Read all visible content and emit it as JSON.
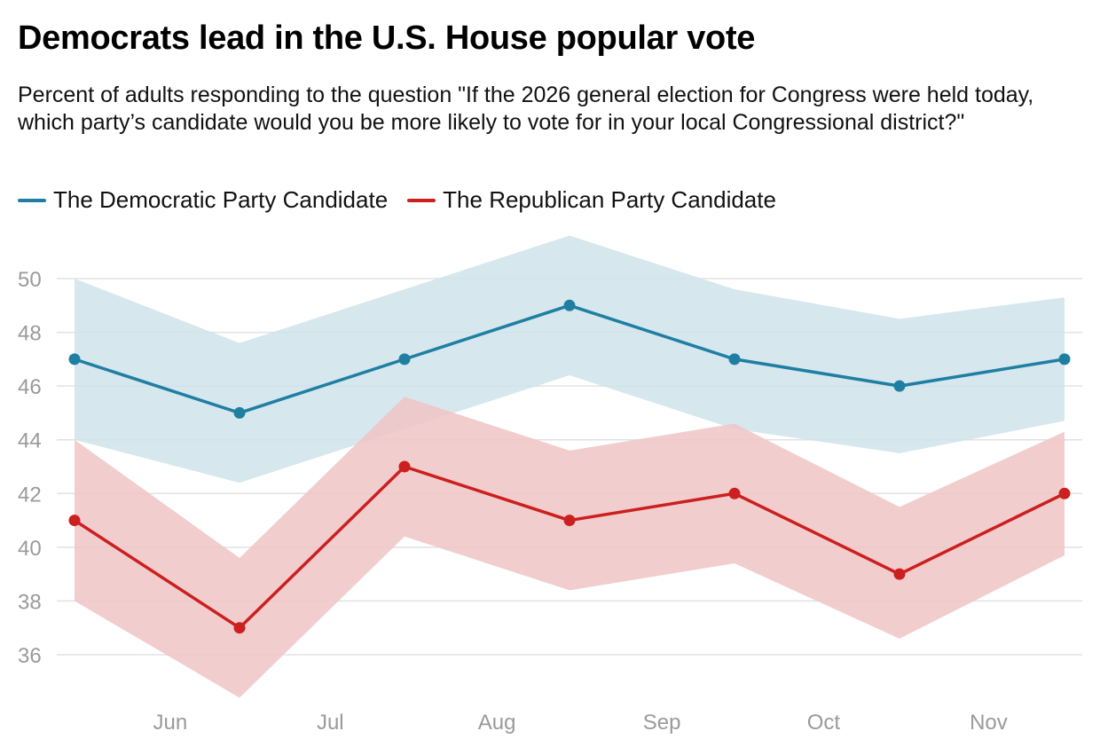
{
  "title": "Democrats lead in the U.S. House popular vote",
  "subtitle": "Percent of adults responding to the question \"If the 2026 general election for Congress were held today, which party’s candidate would you be more likely to vote for in your local Congressional district?\"",
  "chart_data": {
    "type": "line",
    "title": "Democrats lead in the U.S. House popular vote",
    "xlabel": "",
    "ylabel": "",
    "ylim": [
      34,
      52
    ],
    "yticks": [
      36,
      38,
      40,
      42,
      44,
      46,
      48,
      50
    ],
    "x": [
      0,
      1,
      2,
      3,
      4,
      5,
      6
    ],
    "xticks": [
      {
        "label": "Jun",
        "at": 0.58
      },
      {
        "label": "Jul",
        "at": 1.55
      },
      {
        "label": "Aug",
        "at": 2.56
      },
      {
        "label": "Sep",
        "at": 3.56
      },
      {
        "label": "Oct",
        "at": 4.54
      },
      {
        "label": "Nov",
        "at": 5.54
      }
    ],
    "grid": true,
    "legend_position": "top-left",
    "series": [
      {
        "name": "The Democratic Party Candidate",
        "color": "#1f7fa3",
        "band_color": "#cfe3ea",
        "values": [
          47,
          45,
          47,
          49,
          47,
          46,
          47
        ],
        "upper": [
          50,
          47.6,
          49.6,
          51.6,
          49.6,
          48.5,
          49.3
        ],
        "lower": [
          44,
          42.4,
          44.4,
          46.4,
          44.4,
          43.5,
          44.7
        ]
      },
      {
        "name": "The Republican Party Candidate",
        "color": "#cc1f1f",
        "band_color": "#f0c4c4",
        "values": [
          41,
          37,
          43,
          41,
          42,
          39,
          42
        ],
        "upper": [
          44,
          39.6,
          45.6,
          43.6,
          44.6,
          41.5,
          44.3
        ],
        "lower": [
          38,
          34.4,
          40.4,
          38.4,
          39.4,
          36.6,
          39.7
        ]
      }
    ]
  }
}
